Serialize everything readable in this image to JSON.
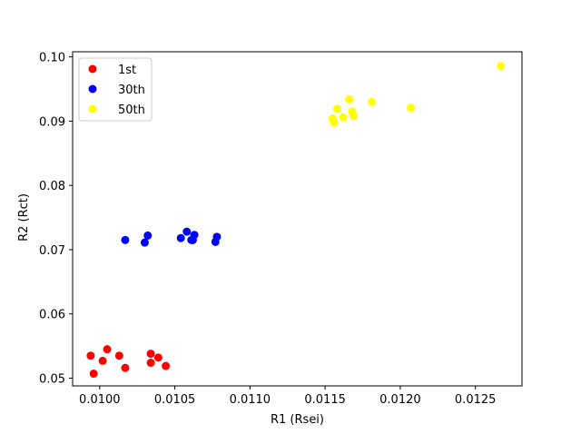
{
  "chart_data": {
    "type": "scatter",
    "title": "",
    "xlabel": "R1 (Rsei)",
    "ylabel": "R2 (Rct)",
    "xlim": [
      0.00982,
      0.01281
    ],
    "ylim": [
      0.0488,
      0.1008
    ],
    "xticks": [
      "0.0100",
      "0.0105",
      "0.0110",
      "0.0115",
      "0.0120",
      "0.0125"
    ],
    "xtick_values": [
      0.01,
      0.0105,
      0.011,
      0.0115,
      0.012,
      0.0125
    ],
    "yticks": [
      "0.05",
      "0.06",
      "0.07",
      "0.08",
      "0.09",
      "0.10"
    ],
    "ytick_values": [
      0.05,
      0.06,
      0.07,
      0.08,
      0.09,
      0.1
    ],
    "grid": false,
    "legend_position": "top-left",
    "series": [
      {
        "name": "1st",
        "color": "#ff0000",
        "points": [
          [
            0.00994,
            0.0535
          ],
          [
            0.00996,
            0.0507
          ],
          [
            0.01002,
            0.0527
          ],
          [
            0.01005,
            0.0545
          ],
          [
            0.01013,
            0.0535
          ],
          [
            0.01017,
            0.0516
          ],
          [
            0.01034,
            0.0538
          ],
          [
            0.01034,
            0.0524
          ],
          [
            0.01039,
            0.0532
          ],
          [
            0.01044,
            0.0519
          ]
        ]
      },
      {
        "name": "30th",
        "color": "#0000ff",
        "points": [
          [
            0.01017,
            0.0715
          ],
          [
            0.0103,
            0.0711
          ],
          [
            0.01032,
            0.0722
          ],
          [
            0.01054,
            0.0718
          ],
          [
            0.01058,
            0.0728
          ],
          [
            0.01061,
            0.0715
          ],
          [
            0.01062,
            0.0715
          ],
          [
            0.01063,
            0.0723
          ],
          [
            0.01077,
            0.0712
          ],
          [
            0.01078,
            0.072
          ]
        ]
      },
      {
        "name": "50th",
        "color": "#ffff00",
        "points": [
          [
            0.01155,
            0.0904
          ],
          [
            0.01156,
            0.0898
          ],
          [
            0.01158,
            0.0919
          ],
          [
            0.01162,
            0.0906
          ],
          [
            0.01166,
            0.0934
          ],
          [
            0.01168,
            0.0915
          ],
          [
            0.01169,
            0.0908
          ],
          [
            0.01181,
            0.093
          ],
          [
            0.01207,
            0.0921
          ],
          [
            0.01267,
            0.0986
          ]
        ]
      }
    ]
  }
}
